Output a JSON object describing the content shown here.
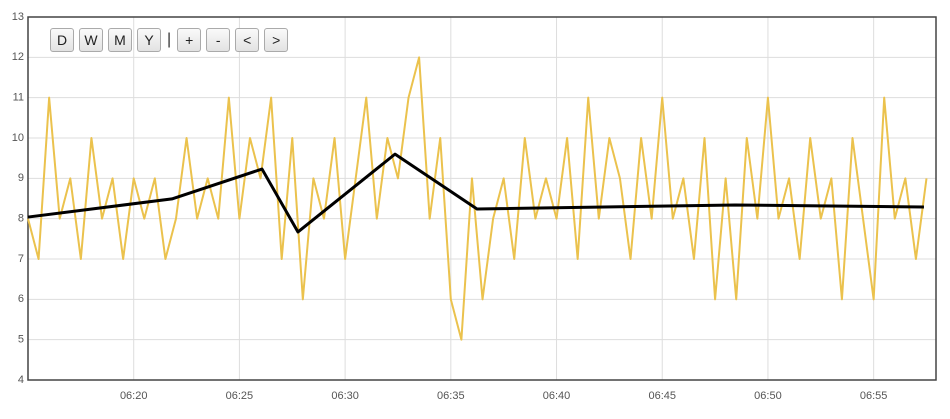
{
  "buttons": [
    "D",
    "W",
    "M",
    "Y",
    "+",
    "-",
    "<",
    ">"
  ],
  "separator": "|",
  "chart_data": {
    "type": "line",
    "x": [
      15,
      15.5,
      16,
      16.5,
      17,
      17.5,
      18,
      18.5,
      19,
      19.5,
      20,
      20.5,
      21,
      21.5,
      22,
      22.5,
      23,
      23.5,
      24,
      24.5,
      25,
      25.5,
      26,
      26.5,
      27,
      27.5,
      28,
      28.5,
      29,
      29.5,
      30,
      30.5,
      31,
      31.5,
      32,
      32.5,
      33,
      33.5,
      34,
      34.5,
      35,
      35.5,
      36,
      36.5,
      37,
      37.5,
      38,
      38.5,
      39,
      39.5,
      40,
      40.5,
      41,
      41.5,
      42,
      42.5,
      43,
      43.5,
      44,
      44.5,
      45,
      45.5,
      46,
      46.5,
      47,
      47.5,
      48,
      48.5,
      49,
      49.5,
      50,
      50.5,
      51,
      51.5,
      52,
      52.5,
      53,
      53.5,
      54,
      54.5,
      55,
      55.5,
      56,
      56.5,
      57,
      57.5
    ],
    "series": [
      {
        "color": "#ebc24d",
        "values": [
          8,
          7,
          11,
          8,
          9,
          7,
          10,
          8,
          9,
          7,
          9,
          8,
          9,
          7,
          8,
          10,
          8,
          9,
          8,
          11,
          8,
          10,
          9,
          11,
          7,
          10,
          6,
          9,
          8,
          10,
          7,
          9,
          11,
          8,
          10,
          9,
          11,
          12,
          8,
          10,
          6,
          5,
          9,
          6,
          8,
          9,
          7,
          10,
          8,
          9,
          8,
          10,
          7,
          11,
          8,
          10,
          9,
          7,
          10,
          8,
          11,
          8,
          9,
          7,
          10,
          6,
          9,
          6,
          10,
          8,
          11,
          8,
          9,
          7,
          10,
          8,
          9,
          6,
          10,
          8,
          6,
          11,
          8,
          9,
          7,
          9
        ]
      },
      {
        "color": "#000000",
        "x": [
          15,
          21.81,
          26.07,
          27.77,
          32.36,
          36.24,
          48.44,
          57.38
        ],
        "values": [
          8.04,
          8.49,
          9.23,
          7.67,
          9.6,
          8.24,
          8.34,
          8.29
        ]
      }
    ],
    "xlim": [
      15,
      57.95
    ],
    "xticks": [
      {
        "value": 20,
        "label": "06:20"
      },
      {
        "value": 25,
        "label": "06:25"
      },
      {
        "value": 30,
        "label": "06:30"
      },
      {
        "value": 35,
        "label": "06:35"
      },
      {
        "value": 40,
        "label": "06:40"
      },
      {
        "value": 45,
        "label": "06:45"
      },
      {
        "value": 50,
        "label": "06:50"
      },
      {
        "value": 55,
        "label": "06:55"
      }
    ],
    "ylim": [
      4,
      13
    ],
    "yticks": [
      4,
      5,
      6,
      7,
      8,
      9,
      10,
      11,
      12,
      13
    ],
    "grid": true
  }
}
